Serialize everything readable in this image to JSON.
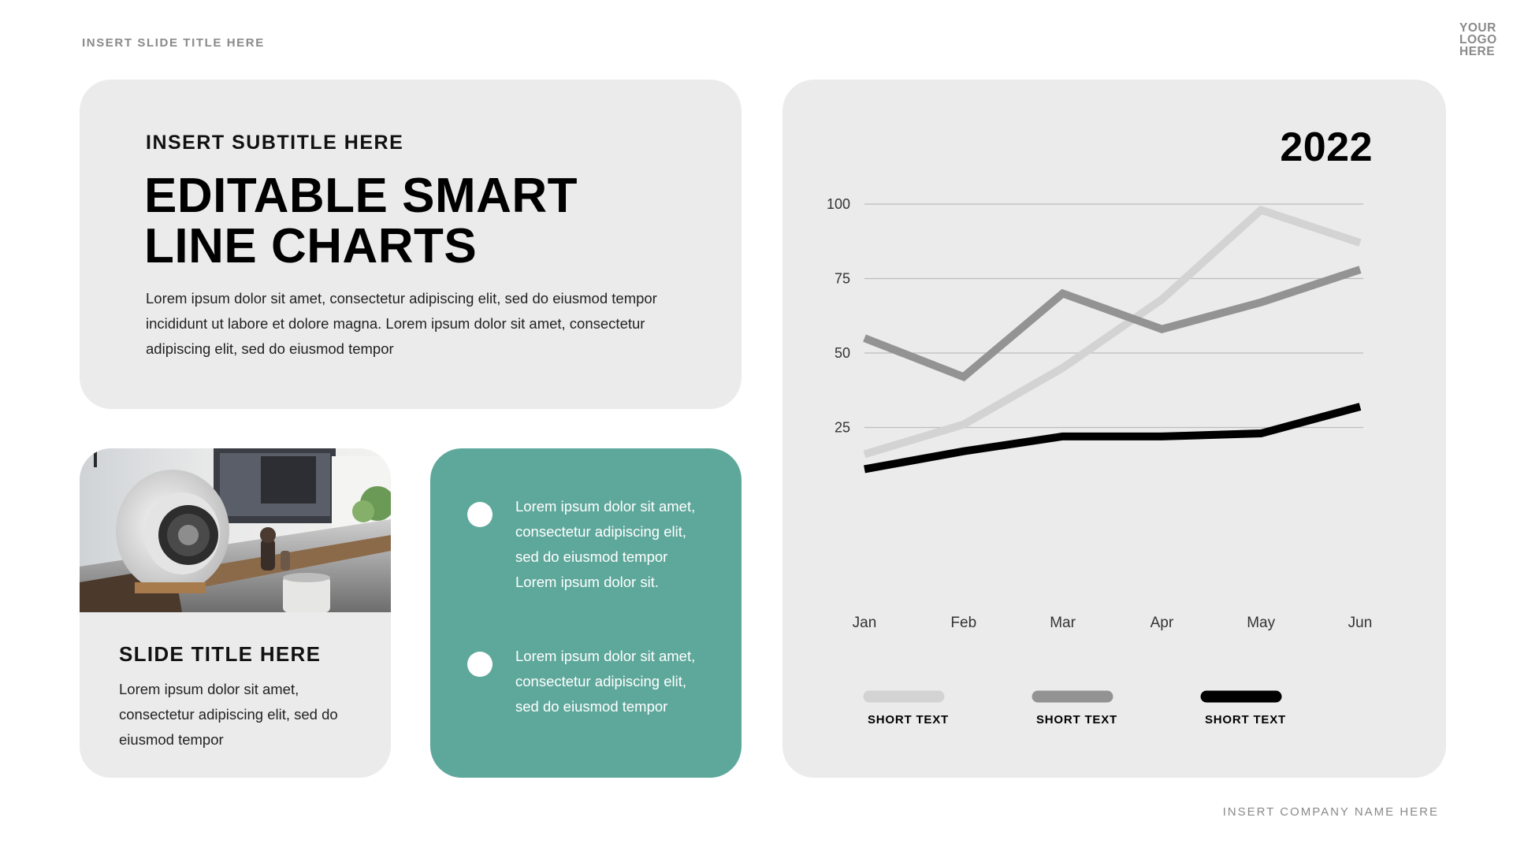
{
  "header": {
    "slide_title": "INSERT SLIDE TITLE HERE",
    "logo_lines": [
      "YOUR",
      "LOGO",
      "HERE"
    ]
  },
  "footer": {
    "company": "INSERT COMPANY NAME HERE"
  },
  "hero": {
    "subtitle": "INSERT SUBTITLE HERE",
    "title_line1": "EDITABLE SMART",
    "title_line2": "LINE CHARTS",
    "body": "Lorem ipsum dolor sit amet, consectetur adipiscing elit, sed do eiusmod tempor incididunt ut labore et dolore magna. Lorem ipsum dolor sit amet, consectetur adipiscing elit, sed do eiusmod tempor"
  },
  "photo_card": {
    "title": "SLIDE TITLE HERE",
    "body": "Lorem ipsum dolor sit amet, consectetur adipiscing elit, sed do eiusmod tempor"
  },
  "teal_card": {
    "items": [
      {
        "text": "Lorem ipsum dolor sit amet, consectetur adipiscing elit, sed do eiusmod tempor Lorem ipsum dolor sit."
      },
      {
        "text": "Lorem ipsum dolor sit amet, consectetur adipiscing elit, sed do eiusmod tempor"
      }
    ]
  },
  "colors": {
    "teal": "#5ea89b",
    "card": "#ebebeb",
    "series_light": "#d3d3d3",
    "series_mid": "#939393",
    "series_dark": "#000000"
  },
  "chart_data": {
    "type": "line",
    "title": "2022",
    "categories": [
      "Jan",
      "Feb",
      "Mar",
      "Apr",
      "May",
      "Jun"
    ],
    "y_ticks": [
      100,
      75,
      50,
      25
    ],
    "ylim": [
      0,
      100
    ],
    "grid": true,
    "legend_position": "bottom",
    "series": [
      {
        "name": "SHORT TEXT",
        "color": "#d3d3d3",
        "values": [
          16,
          26,
          45,
          68,
          98,
          87
        ]
      },
      {
        "name": "SHORT TEXT",
        "color": "#939393",
        "values": [
          55,
          42,
          70,
          58,
          67,
          78
        ]
      },
      {
        "name": "SHORT TEXT",
        "color": "#000000",
        "values": [
          11,
          17,
          22,
          22,
          23,
          32
        ]
      }
    ]
  }
}
